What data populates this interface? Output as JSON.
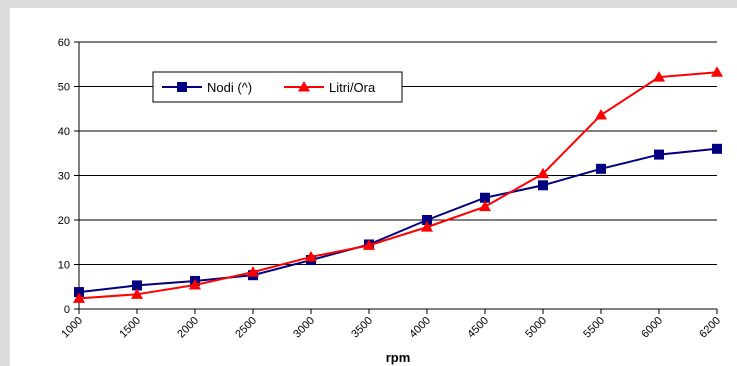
{
  "chart_data": {
    "type": "line",
    "title": "",
    "xlabel": "rpm",
    "ylabel": "",
    "categories": [
      "1000",
      "1500",
      "2000",
      "2500",
      "3000",
      "3500",
      "4000",
      "4500",
      "5000",
      "5500",
      "6000",
      "6200"
    ],
    "ylim": [
      0,
      60
    ],
    "yticks": [
      0,
      10,
      20,
      30,
      40,
      50,
      60
    ],
    "grid": true,
    "legend_position": "top-left",
    "series": [
      {
        "name": "Nodi (^)",
        "color": "#000080",
        "marker": "square",
        "values": [
          3.8,
          5.3,
          6.3,
          7.6,
          11.0,
          14.5,
          20.0,
          25.0,
          27.8,
          31.5,
          34.7,
          36.0
        ]
      },
      {
        "name": "Litri/Ora",
        "color": "#ff0000",
        "marker": "triangle",
        "values": [
          2.4,
          3.3,
          5.4,
          8.3,
          11.7,
          14.3,
          18.4,
          23.0,
          30.4,
          43.6,
          52.1,
          53.2
        ]
      }
    ]
  }
}
